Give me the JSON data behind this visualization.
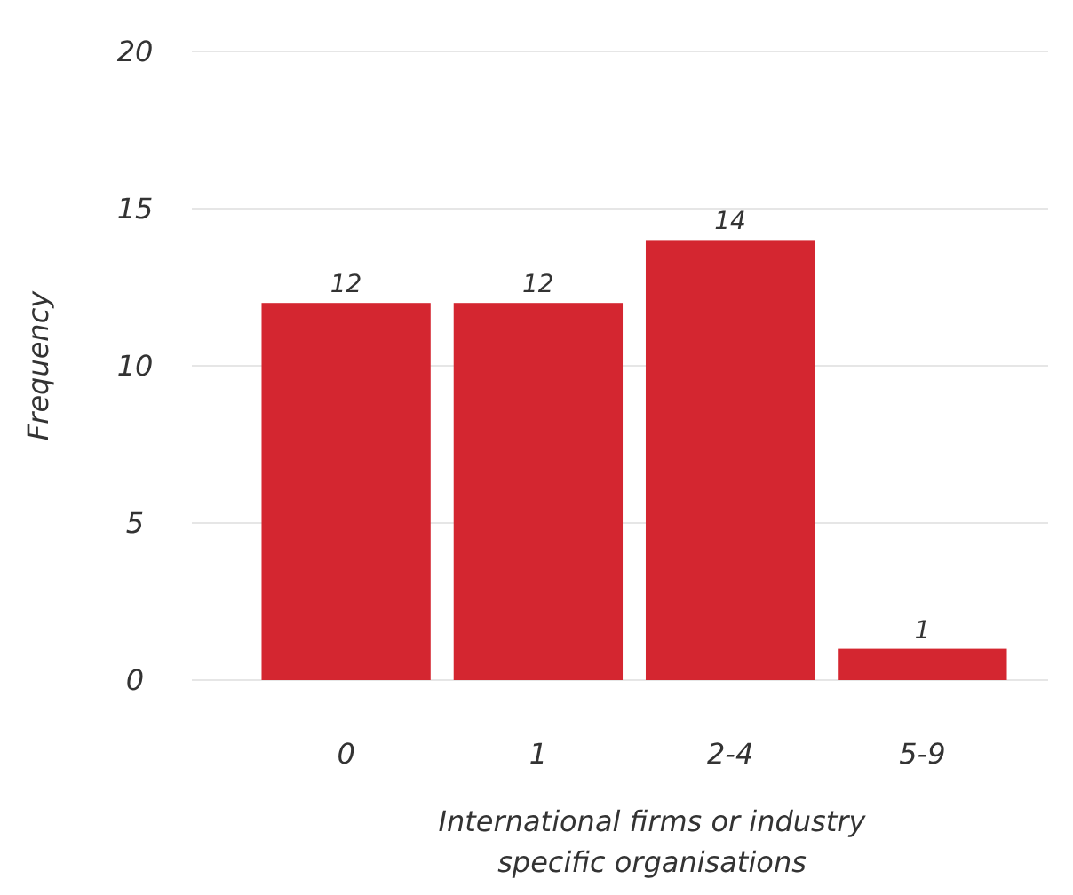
{
  "chart_data": {
    "type": "bar",
    "xlabel": "International firms or industry specific organisations",
    "ylabel": "Frequency",
    "categories": [
      "0",
      "1",
      "2-4",
      "5-9"
    ],
    "values": [
      12,
      12,
      14,
      1
    ],
    "color": "#d42630",
    "data_labels": true,
    "ylim": [
      0,
      20
    ],
    "yticks": [
      0,
      5,
      10,
      15,
      20
    ],
    "grid": "y"
  }
}
